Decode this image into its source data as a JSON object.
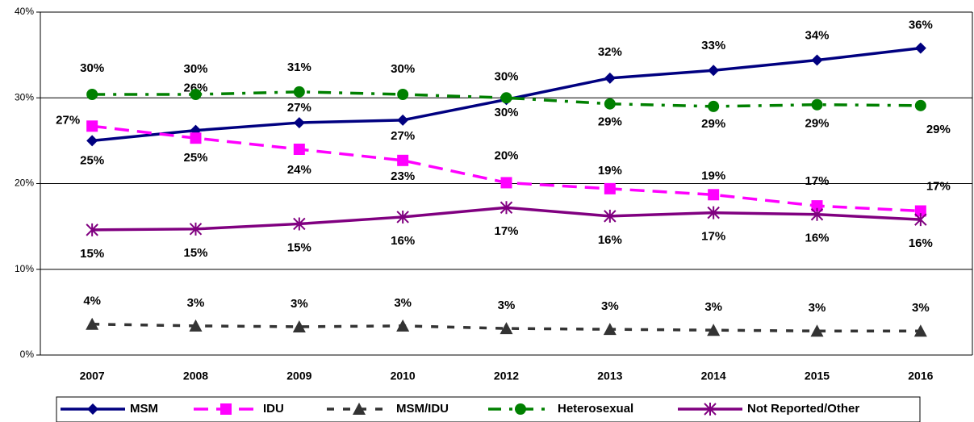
{
  "chart_data": {
    "type": "line",
    "categories": [
      "2007",
      "2008",
      "2009",
      "2010",
      "2012",
      "2013",
      "2014",
      "2015",
      "2016"
    ],
    "ylim": [
      0,
      40
    ],
    "yticks": [
      {
        "value": 0,
        "label": "0%"
      },
      {
        "value": 10,
        "label": "10%"
      },
      {
        "value": 20,
        "label": "20%"
      },
      {
        "value": 30,
        "label": "30%"
      },
      {
        "value": 40,
        "label": "40%"
      }
    ],
    "grid": true,
    "legend": "bottom",
    "series": [
      {
        "name": "MSM",
        "color": "#000080",
        "marker": "diamond",
        "line_style": "solid",
        "values": [
          25.0,
          26.2,
          27.1,
          27.4,
          29.8,
          32.3,
          33.2,
          34.4,
          35.8
        ],
        "value_labels": [
          "25%",
          "26%",
          "27%",
          "27%",
          "30%",
          "32%",
          "33%",
          "34%",
          "36%"
        ]
      },
      {
        "name": "IDU",
        "color": "#ff00ff",
        "marker": "square",
        "line_style": "dashed",
        "values": [
          26.7,
          25.3,
          24.0,
          22.7,
          20.1,
          19.4,
          18.7,
          17.4,
          16.8
        ],
        "value_labels": [
          "27%",
          "25%",
          "24%",
          "23%",
          "20%",
          "19%",
          "19%",
          "17%",
          "17%"
        ]
      },
      {
        "name": "MSM/IDU",
        "color": "#333333",
        "marker": "triangle",
        "line_style": "dotted",
        "values": [
          3.6,
          3.4,
          3.3,
          3.4,
          3.1,
          3.0,
          2.9,
          2.8,
          2.8
        ],
        "value_labels": [
          "4%",
          "3%",
          "3%",
          "3%",
          "3%",
          "3%",
          "3%",
          "3%",
          "3%"
        ]
      },
      {
        "name": "Heterosexual",
        "color": "#008000",
        "marker": "circle",
        "line_style": "dashdot",
        "values": [
          30.4,
          30.4,
          30.7,
          30.4,
          30.0,
          29.3,
          29.0,
          29.2,
          29.1
        ],
        "value_labels": [
          "30%",
          "30%",
          "31%",
          "30%",
          "30%",
          "29%",
          "29%",
          "29%",
          "29%"
        ]
      },
      {
        "name": "Not Reported/Other",
        "color": "#800080",
        "marker": "star",
        "line_style": "solid",
        "values": [
          14.6,
          14.7,
          15.3,
          16.1,
          17.2,
          16.2,
          16.6,
          16.4,
          15.8
        ],
        "value_labels": [
          "15%",
          "15%",
          "15%",
          "16%",
          "17%",
          "16%",
          "17%",
          "16%",
          "16%"
        ]
      }
    ]
  }
}
